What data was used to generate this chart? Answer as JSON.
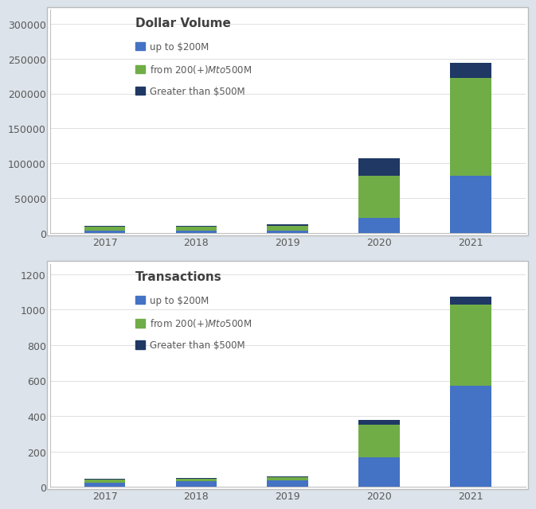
{
  "years": [
    "2017",
    "2018",
    "2019",
    "2020",
    "2021"
  ],
  "dollar_volume": {
    "up_to_200": [
      3000,
      3000,
      3500,
      22000,
      82000
    ],
    "200_to_500": [
      5500,
      5500,
      6500,
      60000,
      140000
    ],
    "over_500": [
      2000,
      2000,
      2000,
      25000,
      22000
    ]
  },
  "transactions": {
    "up_to_200": [
      25,
      30,
      35,
      165,
      570
    ],
    "200_to_500": [
      15,
      15,
      20,
      185,
      460
    ],
    "over_500": [
      5,
      5,
      5,
      30,
      45
    ]
  },
  "colors": {
    "up_to_200": "#4472C4",
    "200_to_500": "#70AD47",
    "over_500": "#1F3864"
  },
  "title1": "Dollar Volume",
  "title2": "Transactions",
  "legend_labels": [
    "up to $200M",
    "from $200(+)M to $500M",
    "Greater than $500M"
  ],
  "ylim1": [
    0,
    320000
  ],
  "ylim2": [
    0,
    1260
  ],
  "yticks1": [
    0,
    50000,
    100000,
    150000,
    200000,
    250000,
    300000
  ],
  "yticks2": [
    0,
    200,
    400,
    600,
    800,
    1000,
    1200
  ],
  "fig_bg": "#dce3ea",
  "panel_bg": "#ffffff",
  "title_color": "#404040",
  "tick_color": "#595959",
  "spine_color": "#c0c0c0"
}
